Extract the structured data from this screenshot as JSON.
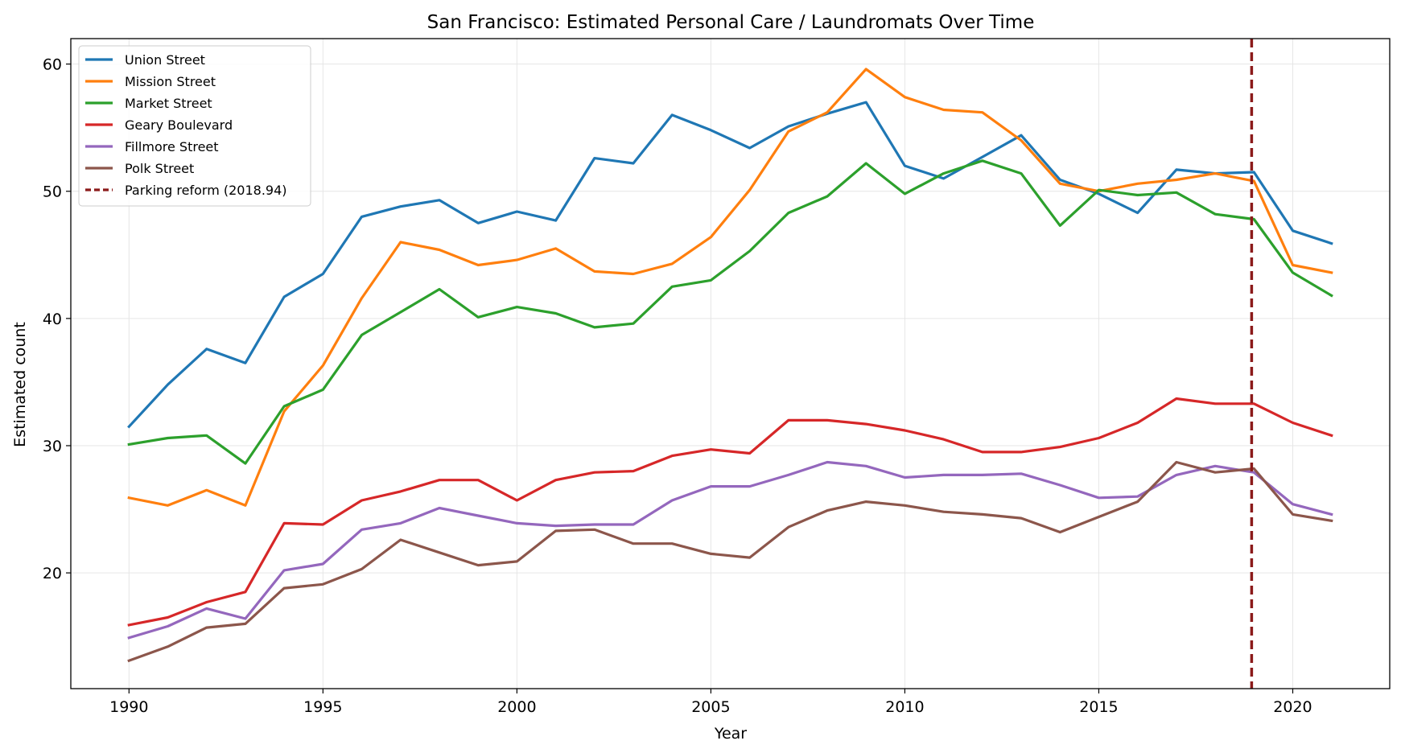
{
  "chart_data": {
    "type": "line",
    "title": "San Francisco: Estimated Personal Care / Laundromats Over Time",
    "xlabel": "Year",
    "ylabel": "Estimated count",
    "xlim": [
      1988.5,
      2022.5
    ],
    "ylim": [
      10.9,
      62.0
    ],
    "xticks": [
      1990,
      1995,
      2000,
      2005,
      2010,
      2015,
      2020
    ],
    "yticks": [
      20,
      30,
      40,
      50,
      60
    ],
    "grid": true,
    "legend_position": "top-left",
    "x": [
      1990,
      1991,
      1992,
      1993,
      1994,
      1995,
      1996,
      1997,
      1998,
      1999,
      2000,
      2001,
      2002,
      2003,
      2004,
      2005,
      2006,
      2007,
      2008,
      2009,
      2010,
      2011,
      2012,
      2013,
      2014,
      2015,
      2016,
      2017,
      2018,
      2019,
      2020,
      2021
    ],
    "series": [
      {
        "name": "Union Street",
        "color": "#1f77b4",
        "values": [
          31.5,
          34.8,
          37.6,
          36.5,
          41.7,
          43.5,
          48.0,
          48.8,
          49.3,
          47.5,
          48.4,
          47.7,
          52.6,
          52.2,
          56.0,
          54.8,
          53.4,
          55.1,
          56.1,
          57.0,
          52.0,
          51.0,
          52.7,
          54.4,
          50.9,
          49.8,
          48.3,
          51.7,
          51.4,
          51.5,
          46.9,
          45.9
        ]
      },
      {
        "name": "Mission Street",
        "color": "#ff7f0e",
        "values": [
          25.9,
          25.3,
          26.5,
          25.3,
          32.7,
          36.3,
          41.6,
          46.0,
          45.4,
          44.2,
          44.6,
          45.5,
          43.7,
          43.5,
          44.3,
          46.4,
          50.1,
          54.7,
          56.2,
          59.6,
          57.4,
          56.4,
          56.2,
          54.0,
          50.6,
          50.0,
          50.6,
          50.9,
          51.4,
          50.8,
          44.2,
          43.6
        ]
      },
      {
        "name": "Market Street",
        "color": "#2ca02c",
        "values": [
          30.1,
          30.6,
          30.8,
          28.6,
          33.1,
          34.4,
          38.7,
          40.5,
          42.3,
          40.1,
          40.9,
          40.4,
          39.3,
          39.6,
          42.5,
          43.0,
          45.3,
          48.3,
          49.6,
          52.2,
          49.8,
          51.4,
          52.4,
          51.4,
          47.3,
          50.1,
          49.7,
          49.9,
          48.2,
          47.8,
          43.6,
          41.8
        ]
      },
      {
        "name": "Geary Boulevard",
        "color": "#d62728",
        "values": [
          15.9,
          16.5,
          17.7,
          18.5,
          23.9,
          23.8,
          25.7,
          26.4,
          27.3,
          27.3,
          25.7,
          27.3,
          27.9,
          28.0,
          29.2,
          29.7,
          29.4,
          32.0,
          32.0,
          31.7,
          31.2,
          30.5,
          29.5,
          29.5,
          29.9,
          30.6,
          31.8,
          33.7,
          33.3,
          33.3,
          31.8,
          30.8
        ]
      },
      {
        "name": "Fillmore Street",
        "color": "#9467bd",
        "values": [
          14.9,
          15.8,
          17.2,
          16.4,
          20.2,
          20.7,
          23.4,
          23.9,
          25.1,
          24.5,
          23.9,
          23.7,
          23.8,
          23.8,
          25.7,
          26.8,
          26.8,
          27.7,
          28.7,
          28.4,
          27.5,
          27.7,
          27.7,
          27.8,
          26.9,
          25.9,
          26.0,
          27.7,
          28.4,
          27.9,
          25.4,
          24.6
        ]
      },
      {
        "name": "Polk Street",
        "color": "#8c564b",
        "values": [
          13.1,
          14.2,
          15.7,
          16.0,
          18.8,
          19.1,
          20.3,
          22.6,
          21.6,
          20.6,
          20.9,
          23.3,
          23.4,
          22.3,
          22.3,
          21.5,
          21.2,
          23.6,
          24.9,
          25.6,
          25.3,
          24.8,
          24.6,
          24.3,
          23.2,
          24.4,
          25.6,
          28.7,
          27.9,
          28.2,
          24.6,
          24.1
        ]
      }
    ],
    "annotation": {
      "name": "Parking reform (2018.94)",
      "x": 2018.94,
      "color": "#8b1a1a",
      "style": "dashed"
    }
  }
}
